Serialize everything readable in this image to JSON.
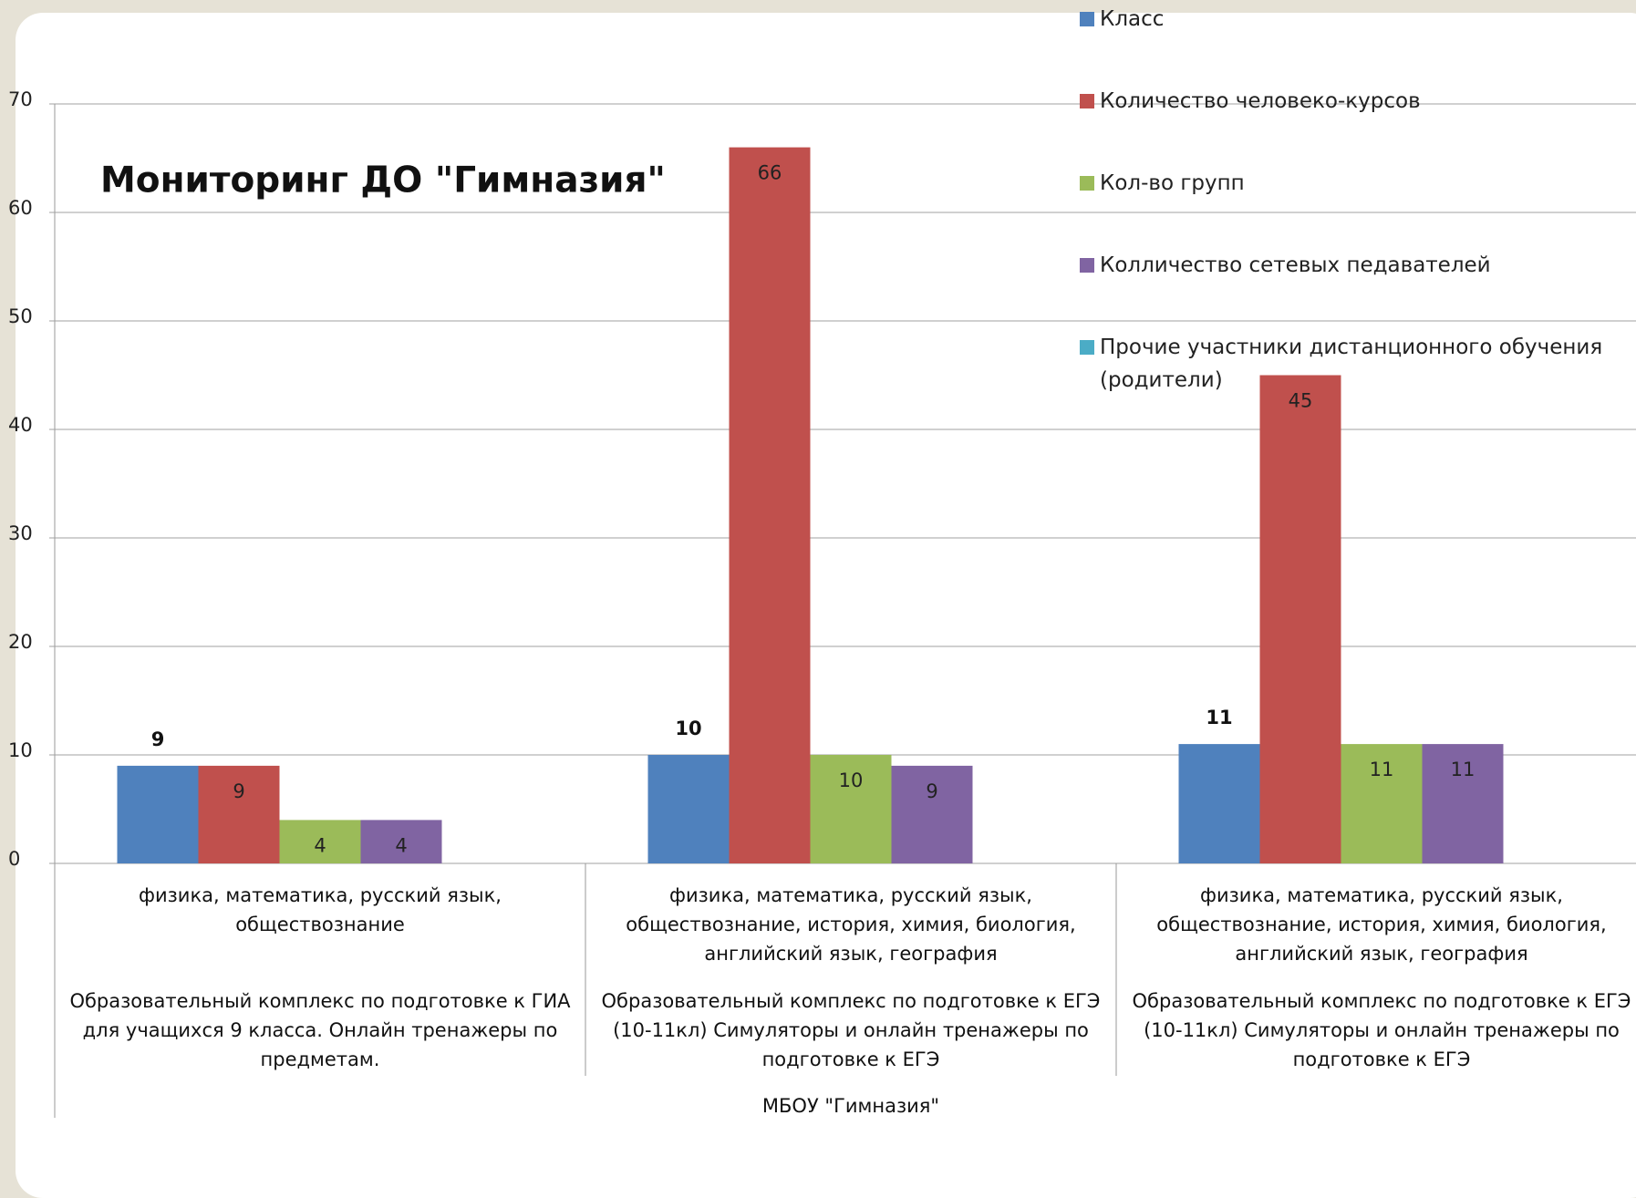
{
  "chart_data": {
    "type": "bar",
    "title": "Мониторинг ДО \"Гимназия\"",
    "categories": [
      "физика, математика, русский язык, обществознание",
      "физика, математика, русский язык, обществознание, история, химия, биология, английский язык, география",
      "физика, математика, русский язык, обществознание, история, химия, биология, английский язык, география"
    ],
    "category_groups": [
      "Образовательный комплекс по подготовке к ГИА для учащихся 9 класса. Онлайн тренажеры по предметам.",
      "Образовательный комплекс по подготовке к ЕГЭ (10-11кл) Симуляторы и онлайн тренажеры по подготовке к ЕГЭ",
      "Образовательный комплекс по подготовке к ЕГЭ (10-11кл) Симуляторы и онлайн тренажеры по подготовке к ЕГЭ"
    ],
    "x_label": "МБОУ \"Гимназия\"",
    "series": [
      {
        "name": "Класс",
        "color": "#4f81bd",
        "values": [
          9,
          10,
          11
        ]
      },
      {
        "name": "Количество человеко-курсов",
        "color": "#c0504d",
        "values": [
          9,
          66,
          45
        ]
      },
      {
        "name": "Кол-во групп",
        "color": "#9bbb59",
        "values": [
          4,
          10,
          11
        ]
      },
      {
        "name": "Колличество сетевых педавателей",
        "color": "#8064a2",
        "values": [
          4,
          9,
          11
        ]
      },
      {
        "name": "Прочие участники  дистанционного обучения (родители)",
        "color": "#4bacc6",
        "values": [
          null,
          null,
          null
        ]
      }
    ],
    "ylim": [
      0,
      70
    ],
    "yticks": [
      0,
      10,
      20,
      30,
      40,
      50,
      60,
      70
    ],
    "grid": true,
    "legend": "top-right"
  }
}
